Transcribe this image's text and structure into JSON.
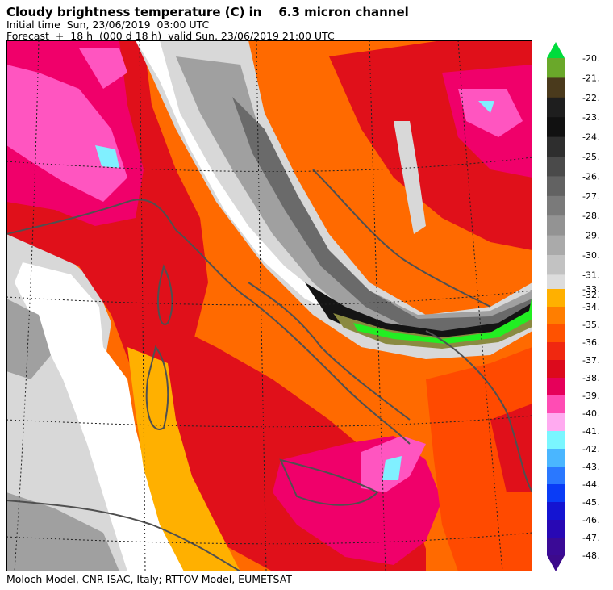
{
  "header": {
    "title": "Cloudy brightness temperature (C) in    6.3 micron channel",
    "initial_time": "Initial time  Sun, 23/06/2019  03:00 UTC",
    "forecast": "Forecast  +  18 h  (000 d 18 h)  valid Sun, 23/06/2019 21:00 UTC"
  },
  "footer": {
    "credit": "Moloch Model, CNR-ISAC, Italy; RTTOV Model, EUMETSAT"
  },
  "legend": {
    "upper_labels": [
      "-20.",
      "-21.",
      "-22.",
      "-23.",
      "-24.",
      "-25.",
      "-26.",
      "-27.",
      "-28.",
      "-29.",
      "-30.",
      "-31.",
      "-32."
    ],
    "upper_colors": [
      "#6aa82a",
      "#4a3a1c",
      "#1e1e1e",
      "#111111",
      "#2e2e2e",
      "#4a4a4a",
      "#626262",
      "#7a7a7a",
      "#939393",
      "#aaaaaa",
      "#c2c2c2",
      "#dcdcdc"
    ],
    "lower_labels": [
      "-33.",
      "-34.",
      "-35.",
      "-36.",
      "-37.",
      "-38.",
      "-39.",
      "-40.",
      "-41.",
      "-42.",
      "-43.",
      "-44.",
      "-45.",
      "-46.",
      "-47.",
      "-48."
    ],
    "lower_colors": [
      "#ffb000",
      "#ff7e00",
      "#ff5200",
      "#f02810",
      "#dc0a1c",
      "#e6005a",
      "#ff4cb4",
      "#ffaaf0",
      "#7af6ff",
      "#4ab6ff",
      "#2a78ff",
      "#0a3cf6",
      "#1414d2",
      "#2808b4",
      "#3a0a96"
    ],
    "top_arrow_color": "#00dc3c",
    "bottom_arrow_color": "#3c0a8c"
  },
  "colors": {
    "background_orange": "#ff6a00",
    "dark_orange": "#ff4a00",
    "amber": "#ffb000",
    "red": "#e0101a",
    "magenta": "#f0006a",
    "pink": "#ff55c0",
    "light_pink": "#ffb0f0",
    "cyan": "#80f0ff",
    "white": "#ffffff",
    "light_gray": "#d8d8d8",
    "mid_gray": "#a0a0a0",
    "dark_gray": "#6a6a6a",
    "black": "#141414",
    "green": "#22ee22",
    "olive": "#8a8a40",
    "coast": "#505050"
  }
}
